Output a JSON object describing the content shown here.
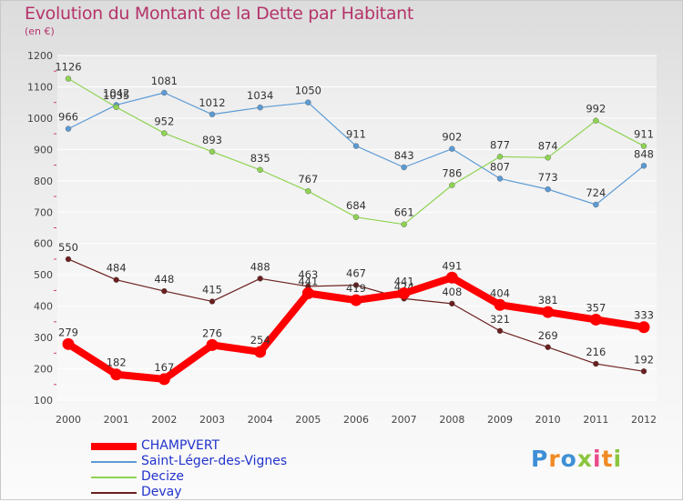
{
  "title": "Evolution du Montant de la Dette par Habitant",
  "subtitle": "(en €)",
  "logo_text": "Proxiti",
  "colors": {
    "title": "#b5336a",
    "legend_text": "#2233cc"
  },
  "chart_data": {
    "type": "line",
    "x": [
      "2000",
      "2001",
      "2002",
      "2003",
      "2004",
      "2005",
      "2006",
      "2007",
      "2008",
      "2009",
      "2010",
      "2011",
      "2012"
    ],
    "ylim": [
      100,
      1200
    ],
    "yticks": [
      100,
      200,
      300,
      400,
      500,
      600,
      700,
      800,
      900,
      1000,
      1100,
      1200
    ],
    "grid": true,
    "legend_position": "bottom-left",
    "series": [
      {
        "name": "Saint-Léger-des-Vignes",
        "color": "#5b9bd5",
        "values": [
          966,
          1042,
          1081,
          1012,
          1034,
          1050,
          911,
          843,
          902,
          807,
          773,
          724,
          848
        ]
      },
      {
        "name": "Decize",
        "color": "#8ed352",
        "values": [
          1126,
          1035,
          952,
          893,
          835,
          767,
          684,
          661,
          786,
          877,
          874,
          992,
          911
        ]
      },
      {
        "name": "Devay",
        "color": "#6b1f1f",
        "values": [
          550,
          484,
          448,
          415,
          488,
          463,
          467,
          424,
          408,
          321,
          269,
          216,
          192
        ]
      },
      {
        "name": "CHAMPVERT",
        "color": "#ff0000",
        "values": [
          279,
          182,
          167,
          276,
          254,
          441,
          419,
          441,
          491,
          404,
          381,
          357,
          333
        ]
      }
    ],
    "data_labels": [
      [
        "966",
        "1042",
        "1081",
        "1012",
        "1034",
        "1050",
        "911",
        "843",
        "902",
        "807",
        "773",
        "724",
        "848"
      ],
      [
        "1126",
        "1035",
        "952",
        "893",
        "835",
        "767",
        "684",
        "661",
        "786",
        "877",
        "874",
        "992",
        "911"
      ],
      [
        "550",
        "484",
        "448",
        "415",
        "488",
        "463",
        "467",
        "424",
        "408",
        "321",
        "269",
        "216",
        "192"
      ],
      [
        "279",
        "182",
        "167",
        "276",
        "254",
        "441",
        "419",
        "441",
        "491",
        "404",
        "381",
        "357",
        "333"
      ]
    ]
  },
  "legend": [
    {
      "label": "CHAMPVERT",
      "color": "#ff0000"
    },
    {
      "label": "Saint-Léger-des-Vignes",
      "color": "#5b9bd5"
    },
    {
      "label": "Decize",
      "color": "#8ed352"
    },
    {
      "label": "Devay",
      "color": "#6b1f1f"
    }
  ]
}
